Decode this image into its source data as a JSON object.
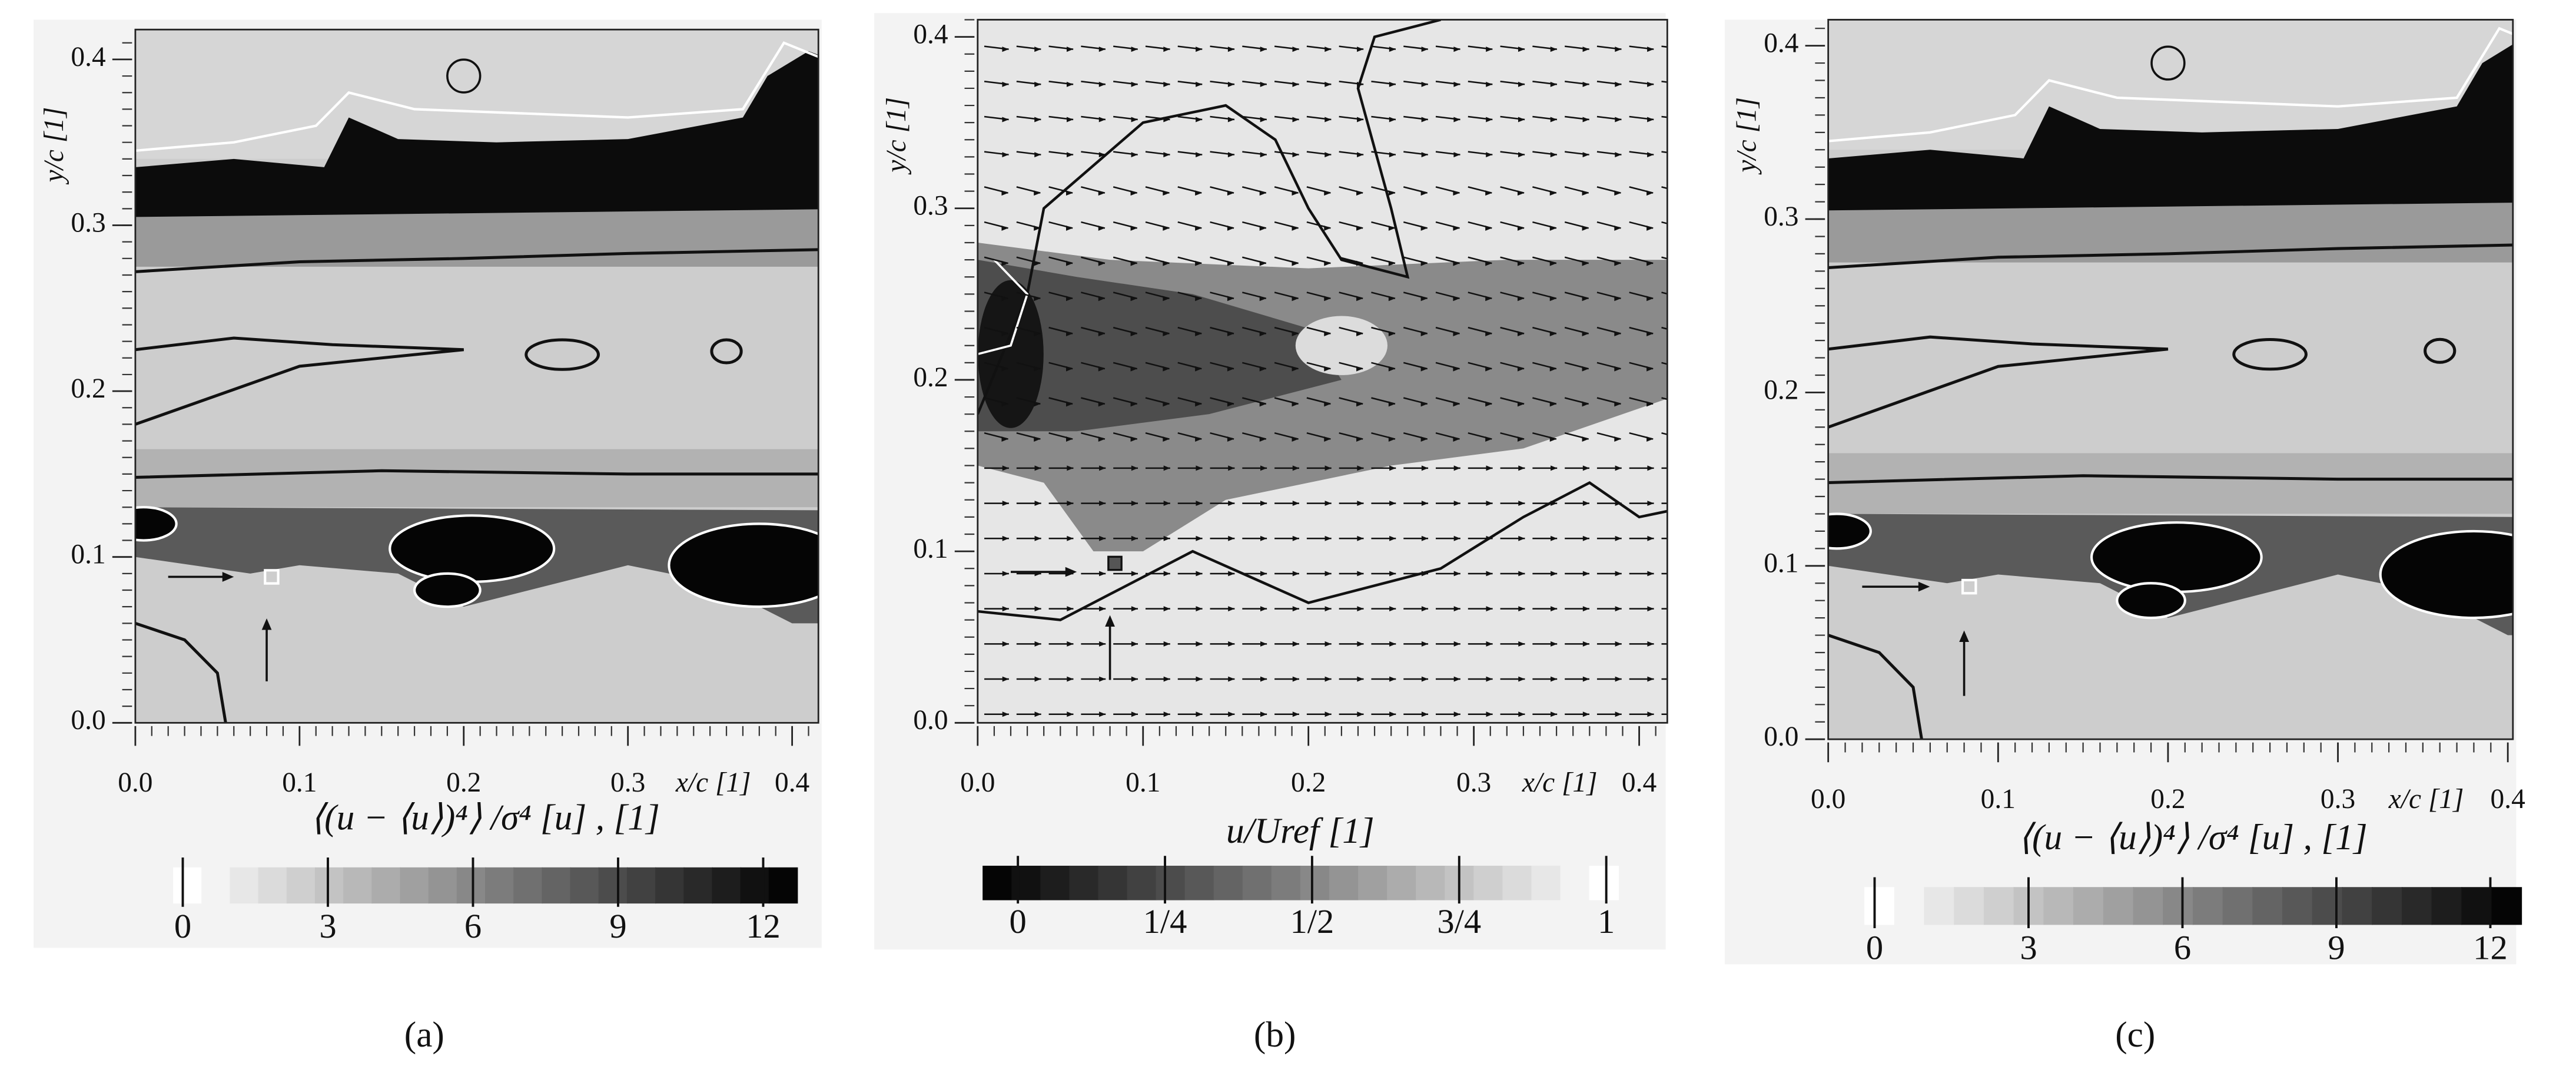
{
  "chart_data": [
    {
      "type": "heatmap",
      "panel_label": "(a)",
      "xlabel": "x/c [1]",
      "ylabel": "y/c [1]",
      "xlim": [
        0,
        0.416
      ],
      "ylim": [
        0,
        0.418
      ],
      "xticks": [
        {
          "value": 0,
          "label": "0.0"
        },
        0.1,
        0.2,
        0.3,
        0.4
      ],
      "yticks": [
        {
          "value": 0,
          "label": "0.0"
        },
        0.1,
        0.2,
        0.3,
        0.4
      ],
      "colorbar": {
        "label": "⟨(u − ⟨u⟩)⁴⟩ /σ⁴ [u] , [1]",
        "cmap": "gray_r",
        "lim": [
          -0.2,
          12.7
        ],
        "ticks": [
          0,
          3,
          6,
          9,
          12
        ]
      }
    },
    {
      "type": "heatmap",
      "panel_label": "(b)",
      "xlabel": "x/c [1]",
      "ylabel": "y/c [1]",
      "xlim": [
        0,
        0.417
      ],
      "ylim": [
        0,
        0.41
      ],
      "xticks": [
        {
          "value": 0,
          "label": "0.0"
        },
        0.1,
        0.2,
        0.3,
        0.4
      ],
      "yticks": [
        {
          "value": 0,
          "label": "0.0"
        },
        0.1,
        0.2,
        0.3,
        0.4
      ],
      "quiver": true,
      "colorbar": {
        "label": "u/Uref [1]",
        "cmap": "gray",
        "lim": [
          -0.06,
          1.02
        ],
        "ticks": [
          0,
          {
            "value": 0.25,
            "label": "1/4"
          },
          {
            "value": 0.5,
            "label": "1/2"
          },
          {
            "value": 0.75,
            "label": "3/4"
          },
          1
        ]
      }
    },
    {
      "type": "heatmap",
      "panel_label": "(c)",
      "xlabel": "x/c [1]",
      "ylabel": "y/c [1]",
      "xlim": [
        0,
        0.403
      ],
      "ylim": [
        0,
        0.415
      ],
      "xticks": [
        {
          "value": 0,
          "label": "0.0"
        },
        0.1,
        0.2,
        0.3,
        0.4
      ],
      "yticks": [
        {
          "value": 0,
          "label": "0.0"
        },
        0.1,
        0.2,
        0.3,
        0.4
      ],
      "colorbar": {
        "label": "⟨(u − ⟨u⟩)⁴⟩ /σ⁴ [u] , [1]",
        "cmap": "gray_r",
        "lim": [
          -0.2,
          12.6
        ],
        "ticks": [
          0,
          3,
          6,
          9,
          12
        ]
      }
    }
  ]
}
